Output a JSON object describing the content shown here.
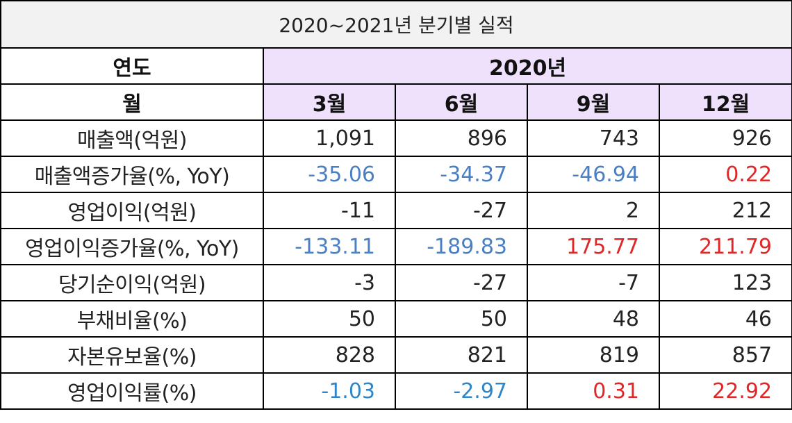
{
  "title": "2020~2021년 분기별 실적",
  "header": {
    "year_label": "연도",
    "year_value": "2020년",
    "month_label": "월",
    "months": [
      "3월",
      "6월",
      "9월",
      "12월"
    ]
  },
  "rows": [
    {
      "label": "매출액(억원)",
      "values": [
        "1,091",
        "896",
        "743",
        "926"
      ]
    },
    {
      "label": "매출액증가율(%, YoY)",
      "values": [
        "-35.06",
        "-34.37",
        "-46.94",
        "0.22"
      ]
    },
    {
      "label": "영업이익(억원)",
      "values": [
        "-11",
        "-27",
        "2",
        "212"
      ]
    },
    {
      "label": "영업이익증가율(%, YoY)",
      "values": [
        "-133.11",
        "-189.83",
        "175.77",
        "211.79"
      ]
    },
    {
      "label": "당기순이익(억원)",
      "values": [
        "-3",
        "-27",
        "-7",
        "123"
      ]
    },
    {
      "label": "부채비율(%)",
      "values": [
        "50",
        "50",
        "48",
        "46"
      ]
    },
    {
      "label": "자본유보율(%)",
      "values": [
        "828",
        "821",
        "819",
        "857"
      ]
    },
    {
      "label": "영업이익률(%)",
      "values": [
        "-1.03",
        "-2.97",
        "0.31",
        "22.92"
      ]
    }
  ],
  "colors": {
    "header_fill": "#efe1fc",
    "title_fill": "#f2f2f2",
    "negative": "#4a7fc4",
    "negative_alt": "#2f86c7",
    "positive": "#e02626"
  }
}
